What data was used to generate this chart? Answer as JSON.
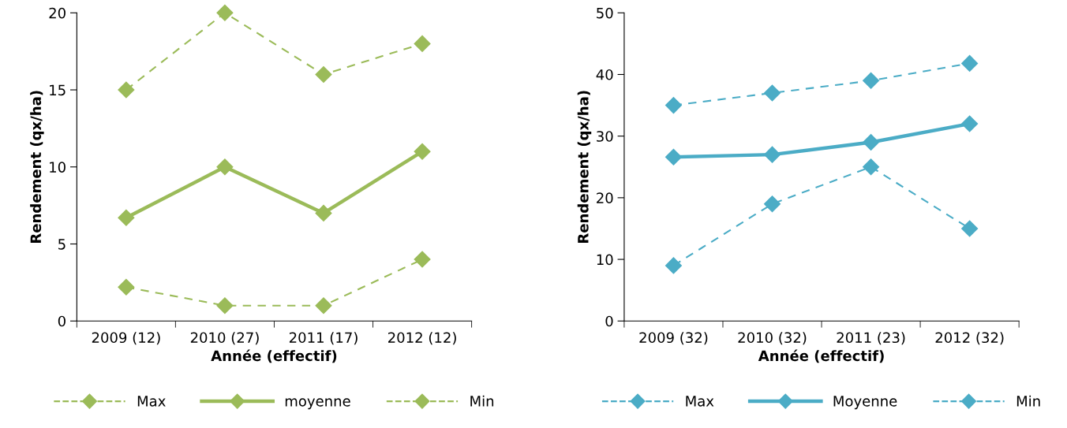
{
  "chart_data": [
    {
      "type": "line",
      "xlabel": "Année (effectif)",
      "ylabel": "Rendement (qx/ha)",
      "categories": [
        "2009 (12)",
        "2010 (27)",
        "2011 (17)",
        "2012 (12)"
      ],
      "ylim": [
        0,
        20
      ],
      "yticks": [
        0,
        5,
        10,
        15,
        20
      ],
      "grid": false,
      "legend": "bottom",
      "marker": "diamond",
      "series": [
        {
          "name": "Max",
          "color": "#9bbb59",
          "line_style": "dashed",
          "values": [
            15,
            20,
            16,
            18
          ]
        },
        {
          "name": "moyenne",
          "color": "#9bbb59",
          "line_style": "solid",
          "values": [
            6.7,
            10,
            7,
            11
          ]
        },
        {
          "name": "Min",
          "color": "#9bbb59",
          "line_style": "dashed",
          "values": [
            2.2,
            1,
            1,
            4
          ]
        }
      ]
    },
    {
      "type": "line",
      "xlabel": "Année (effectif)",
      "ylabel": "Rendement (qx/ha)",
      "categories": [
        "2009 (32)",
        "2010 (32)",
        "2011 (23)",
        "2012 (32)"
      ],
      "ylim": [
        0,
        50
      ],
      "yticks": [
        0,
        10,
        20,
        30,
        40,
        50
      ],
      "grid": false,
      "legend": "bottom",
      "marker": "diamond",
      "series": [
        {
          "name": "Max",
          "color": "#4bacc6",
          "line_style": "dashed",
          "values": [
            35,
            37,
            39,
            41.8
          ]
        },
        {
          "name": "Moyenne",
          "color": "#4bacc6",
          "line_style": "solid",
          "values": [
            26.6,
            27,
            29,
            32
          ]
        },
        {
          "name": "Min",
          "color": "#4bacc6",
          "line_style": "dashed",
          "values": [
            9,
            19,
            25,
            15
          ]
        }
      ]
    }
  ]
}
